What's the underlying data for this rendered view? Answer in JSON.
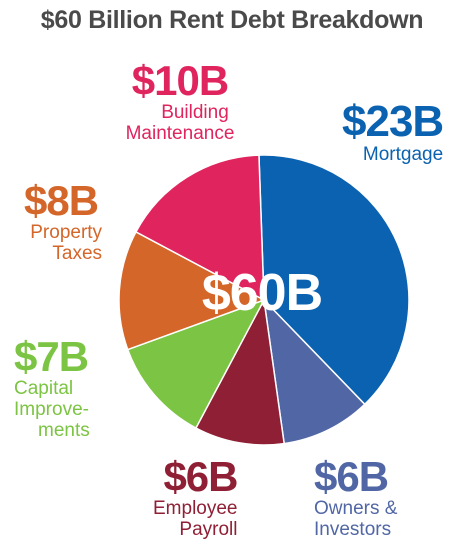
{
  "chart_data": {
    "type": "pie",
    "title": "$60 Billion Rent Debt Breakdown",
    "center_label": "$60B",
    "total": 60,
    "slices": [
      {
        "value_label": "$23B",
        "label_lines": [
          "Mortgage"
        ],
        "value": 23,
        "color": "#0b62b0"
      },
      {
        "value_label": "$6B",
        "label_lines": [
          "Owners &",
          "Investors"
        ],
        "value": 6,
        "color": "#5167a5"
      },
      {
        "value_label": "$6B",
        "label_lines": [
          "Employee",
          "Payroll"
        ],
        "value": 6,
        "color": "#8f1f34"
      },
      {
        "value_label": "$7B",
        "label_lines": [
          "Capital",
          "Improve-",
          "ments"
        ],
        "value": 7,
        "color": "#7cc443"
      },
      {
        "value_label": "$8B",
        "label_lines": [
          "Property",
          "Taxes"
        ],
        "value": 8,
        "color": "#d4662a"
      },
      {
        "value_label": "$10B",
        "label_lines": [
          "Building",
          "Maintenance"
        ],
        "value": 10,
        "color": "#e0245e"
      }
    ]
  }
}
